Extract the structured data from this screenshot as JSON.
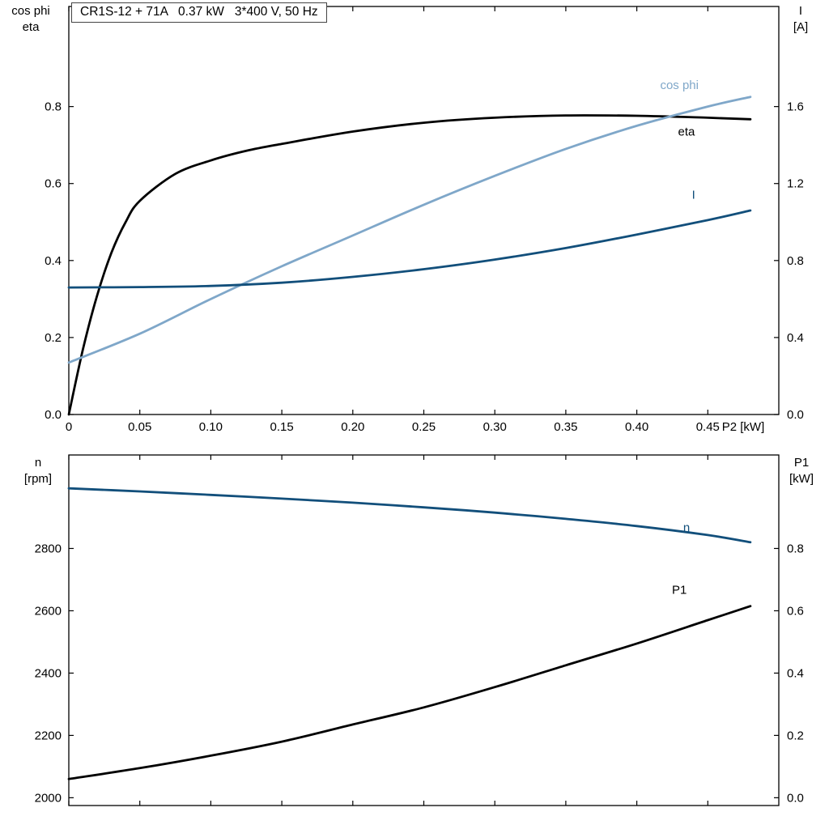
{
  "header": {
    "title": "CR1S-12 + 71A   0.37 kW   3*400 V, 50 Hz"
  },
  "colors": {
    "black_curve": "#000000",
    "light_blue_curve": "#7fa7c9",
    "dark_blue_curve": "#124f7b",
    "frame": "#000000"
  },
  "chart_data": [
    {
      "id": "motor-electrical",
      "type": "line",
      "x_axis": {
        "label": "P2 [kW]",
        "lim": [
          0,
          0.5
        ],
        "ticks": [
          0,
          0.05,
          0.1,
          0.15,
          0.2,
          0.25,
          0.3,
          0.35,
          0.4,
          0.45
        ],
        "tick_labels": [
          "0",
          "0.05",
          "0.10",
          "0.15",
          "0.20",
          "0.25",
          "0.30",
          "0.35",
          "0.40",
          "0.45"
        ]
      },
      "left_axis": {
        "label_lines": [
          "cos phi",
          "eta"
        ],
        "lim": [
          0,
          1.06
        ],
        "ticks": [
          0.0,
          0.2,
          0.4,
          0.6,
          0.8
        ],
        "tick_labels": [
          "0.0",
          "0.2",
          "0.4",
          "0.6",
          "0.8"
        ]
      },
      "right_axis": {
        "label_lines": [
          "I",
          "[A]"
        ],
        "lim": [
          0,
          2.12
        ],
        "ticks": [
          0.0,
          0.4,
          0.8,
          1.2,
          1.6
        ],
        "tick_labels": [
          "0.0",
          "0.4",
          "0.8",
          "1.2",
          "1.6"
        ]
      },
      "series": [
        {
          "name": "eta",
          "axis": "left",
          "color": "#000000",
          "label_pos": [
            0.435,
            0.725
          ],
          "x": [
            0,
            0.01,
            0.02,
            0.03,
            0.04,
            0.05,
            0.075,
            0.1,
            0.125,
            0.15,
            0.2,
            0.25,
            0.3,
            0.35,
            0.4,
            0.45,
            0.48
          ],
          "y": [
            0,
            0.17,
            0.31,
            0.42,
            0.5,
            0.555,
            0.625,
            0.66,
            0.685,
            0.703,
            0.735,
            0.758,
            0.771,
            0.777,
            0.776,
            0.771,
            0.767
          ]
        },
        {
          "name": "cos phi",
          "axis": "left",
          "color": "#7fa7c9",
          "label_pos": [
            0.43,
            0.845
          ],
          "x": [
            0,
            0.05,
            0.1,
            0.15,
            0.2,
            0.25,
            0.3,
            0.35,
            0.4,
            0.45,
            0.48
          ],
          "y": [
            0.135,
            0.21,
            0.3,
            0.385,
            0.465,
            0.545,
            0.62,
            0.69,
            0.75,
            0.8,
            0.825
          ]
        },
        {
          "name": "I",
          "axis": "right",
          "color": "#124f7b",
          "label_pos": [
            0.44,
            1.12
          ],
          "x": [
            0,
            0.05,
            0.1,
            0.15,
            0.2,
            0.25,
            0.3,
            0.35,
            0.4,
            0.45,
            0.48
          ],
          "y": [
            0.66,
            0.662,
            0.668,
            0.685,
            0.715,
            0.755,
            0.805,
            0.865,
            0.935,
            1.01,
            1.06
          ]
        }
      ]
    },
    {
      "id": "speed-power",
      "type": "line",
      "x_axis": {
        "label": null,
        "lim": [
          0,
          0.5
        ],
        "ticks": [
          0,
          0.05,
          0.1,
          0.15,
          0.2,
          0.25,
          0.3,
          0.35,
          0.4,
          0.45
        ],
        "tick_labels": null
      },
      "left_axis": {
        "label_lines": [
          "n",
          "[rpm]"
        ],
        "lim": [
          1975,
          3100
        ],
        "ticks": [
          2000,
          2200,
          2400,
          2600,
          2800
        ],
        "tick_labels": [
          "2000",
          "2200",
          "2400",
          "2600",
          "2800"
        ]
      },
      "right_axis": {
        "label_lines": [
          "P1",
          "[kW]"
        ],
        "lim": [
          -0.025,
          1.1
        ],
        "ticks": [
          0.0,
          0.2,
          0.4,
          0.6,
          0.8
        ],
        "tick_labels": [
          "0.0",
          "0.2",
          "0.4",
          "0.6",
          "0.8"
        ]
      },
      "series": [
        {
          "name": "n",
          "axis": "left",
          "color": "#124f7b",
          "label_pos": [
            0.435,
            2855
          ],
          "x": [
            0,
            0.05,
            0.1,
            0.15,
            0.2,
            0.25,
            0.3,
            0.35,
            0.4,
            0.45,
            0.48
          ],
          "y": [
            2993,
            2983,
            2972,
            2960,
            2947,
            2932,
            2915,
            2895,
            2872,
            2843,
            2820
          ]
        },
        {
          "name": "P1",
          "axis": "right",
          "color": "#000000",
          "label_pos": [
            0.43,
            0.655
          ],
          "x": [
            0,
            0.05,
            0.1,
            0.15,
            0.2,
            0.25,
            0.3,
            0.35,
            0.4,
            0.45,
            0.48
          ],
          "y": [
            0.06,
            0.095,
            0.135,
            0.18,
            0.235,
            0.29,
            0.355,
            0.425,
            0.495,
            0.57,
            0.615
          ]
        }
      ]
    }
  ]
}
